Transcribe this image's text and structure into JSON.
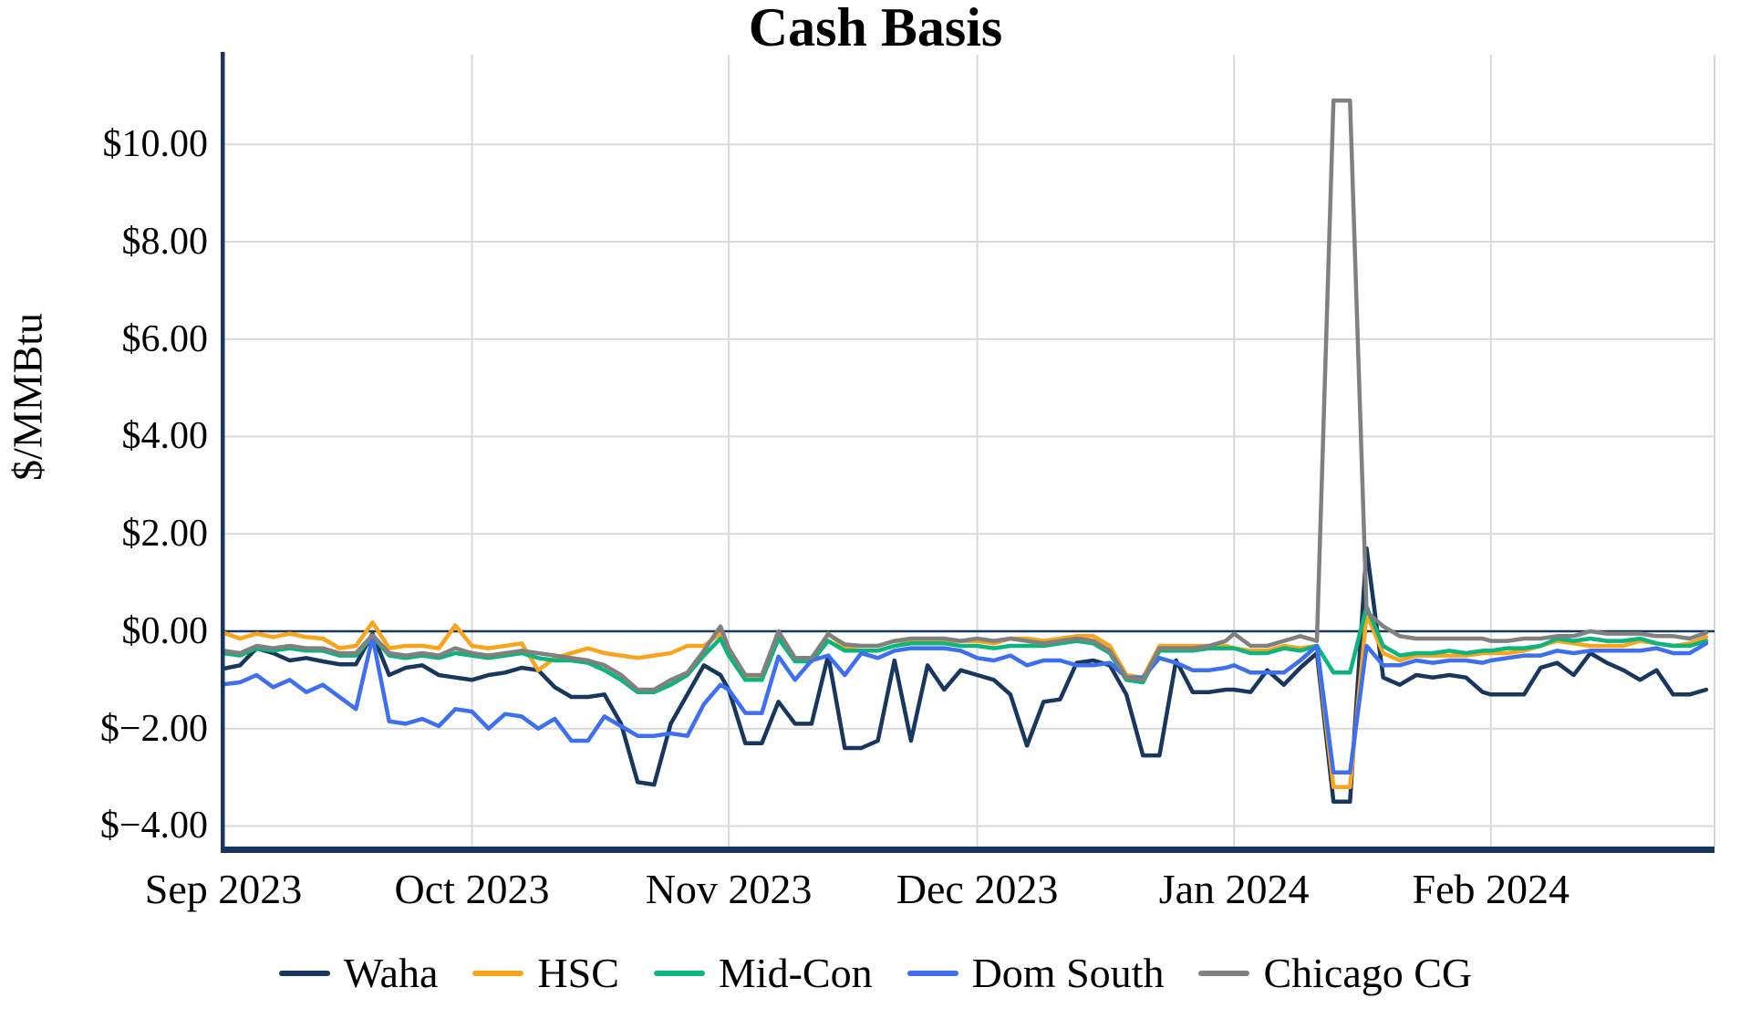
{
  "chart_data": {
    "type": "line",
    "title": "Cash Basis",
    "ylabel": "$/MMBtu",
    "legend_position": "bottom",
    "grid": "on",
    "colors": {
      "axis": "#17375e",
      "zero_line": "#17375e",
      "gridline": "#d9d9d9",
      "background": "#ffffff"
    },
    "ylim": [
      -4.46,
      11.84
    ],
    "x_range": [
      "2023-09-01",
      "2024-02-28"
    ],
    "y_ticks": [
      {
        "value": 10,
        "label": "$10.00"
      },
      {
        "value": 8,
        "label": "$8.00"
      },
      {
        "value": 6,
        "label": "$6.00"
      },
      {
        "value": 4,
        "label": "$4.00"
      },
      {
        "value": 2,
        "label": "$2.00"
      },
      {
        "value": 0,
        "label": "$0.00"
      },
      {
        "value": -2,
        "label": "$−2.00"
      },
      {
        "value": -4,
        "label": "$−4.00"
      }
    ],
    "x_ticks": [
      {
        "date": "2023-09-01",
        "label": "Sep 2023",
        "gridline": false
      },
      {
        "date": "2023-10-01",
        "label": "Oct 2023",
        "gridline": true
      },
      {
        "date": "2023-11-01",
        "label": "Nov 2023",
        "gridline": true
      },
      {
        "date": "2023-12-01",
        "label": "Dec 2023",
        "gridline": true
      },
      {
        "date": "2024-01-01",
        "label": "Jan 2024",
        "gridline": true
      },
      {
        "date": "2024-02-01",
        "label": "Feb 2024",
        "gridline": true
      }
    ],
    "dates": [
      "2023-09-01",
      "2023-09-03",
      "2023-09-05",
      "2023-09-07",
      "2023-09-09",
      "2023-09-11",
      "2023-09-13",
      "2023-09-15",
      "2023-09-17",
      "2023-09-19",
      "2023-09-21",
      "2023-09-23",
      "2023-09-25",
      "2023-09-27",
      "2023-09-29",
      "2023-10-01",
      "2023-10-03",
      "2023-10-05",
      "2023-10-07",
      "2023-10-09",
      "2023-10-11",
      "2023-10-13",
      "2023-10-15",
      "2023-10-17",
      "2023-10-19",
      "2023-10-21",
      "2023-10-23",
      "2023-10-25",
      "2023-10-27",
      "2023-10-29",
      "2023-10-31",
      "2023-11-01",
      "2023-11-03",
      "2023-11-05",
      "2023-11-07",
      "2023-11-09",
      "2023-11-11",
      "2023-11-13",
      "2023-11-15",
      "2023-11-17",
      "2023-11-19",
      "2023-11-21",
      "2023-11-23",
      "2023-11-25",
      "2023-11-27",
      "2023-11-29",
      "2023-12-01",
      "2023-12-03",
      "2023-12-05",
      "2023-12-07",
      "2023-12-09",
      "2023-12-11",
      "2023-12-13",
      "2023-12-15",
      "2023-12-17",
      "2023-12-19",
      "2023-12-21",
      "2023-12-23",
      "2023-12-25",
      "2023-12-27",
      "2023-12-29",
      "2023-12-31",
      "2024-01-01",
      "2024-01-03",
      "2024-01-05",
      "2024-01-07",
      "2024-01-09",
      "2024-01-11",
      "2024-01-13",
      "2024-01-15",
      "2024-01-17",
      "2024-01-19",
      "2024-01-21",
      "2024-01-23",
      "2024-01-25",
      "2024-01-27",
      "2024-01-29",
      "2024-01-31",
      "2024-02-01",
      "2024-02-03",
      "2024-02-05",
      "2024-02-07",
      "2024-02-09",
      "2024-02-11",
      "2024-02-13",
      "2024-02-15",
      "2024-02-17",
      "2024-02-19",
      "2024-02-21",
      "2024-02-23",
      "2024-02-25",
      "2024-02-27"
    ],
    "series": [
      {
        "name": "Waha",
        "color": "#17375e",
        "values": [
          -0.77,
          -0.7,
          -0.35,
          -0.45,
          -0.6,
          -0.55,
          -0.62,
          -0.68,
          -0.68,
          -0.05,
          -0.9,
          -0.75,
          -0.7,
          -0.9,
          -0.95,
          -1.0,
          -0.9,
          -0.85,
          -0.75,
          -0.8,
          -1.15,
          -1.35,
          -1.35,
          -1.3,
          -1.9,
          -3.1,
          -3.15,
          -1.9,
          -1.3,
          -0.7,
          -0.9,
          -1.2,
          -2.3,
          -2.3,
          -1.45,
          -1.9,
          -1.9,
          -0.5,
          -2.4,
          -2.4,
          -2.25,
          -0.6,
          -2.25,
          -0.7,
          -1.2,
          -0.8,
          -0.9,
          -1.0,
          -1.3,
          -2.35,
          -1.45,
          -1.4,
          -0.65,
          -0.6,
          -0.7,
          -1.3,
          -2.55,
          -2.55,
          -0.6,
          -1.25,
          -1.25,
          -1.2,
          -1.2,
          -1.25,
          -0.8,
          -1.1,
          -0.75,
          -0.45,
          -3.5,
          -3.5,
          1.7,
          -0.95,
          -1.1,
          -0.9,
          -0.95,
          -0.9,
          -0.95,
          -1.25,
          -1.3,
          -1.3,
          -1.3,
          -0.75,
          -0.65,
          -0.9,
          -0.45,
          -0.65,
          -0.8,
          -1.0,
          -0.8,
          -1.3,
          -1.3,
          -1.2
        ]
      },
      {
        "name": "HSC",
        "color": "#faa41c",
        "values": [
          -0.03,
          -0.15,
          -0.05,
          -0.12,
          -0.05,
          -0.12,
          -0.15,
          -0.35,
          -0.3,
          0.18,
          -0.35,
          -0.3,
          -0.3,
          -0.35,
          0.12,
          -0.3,
          -0.35,
          -0.3,
          -0.25,
          -0.8,
          -0.55,
          -0.45,
          -0.35,
          -0.45,
          -0.5,
          -0.55,
          -0.5,
          -0.45,
          -0.3,
          -0.3,
          -0.05,
          -0.4,
          -0.95,
          -0.95,
          -0.1,
          -0.6,
          -0.6,
          -0.05,
          -0.33,
          -0.3,
          -0.3,
          -0.2,
          -0.2,
          -0.2,
          -0.2,
          -0.2,
          -0.2,
          -0.25,
          -0.15,
          -0.15,
          -0.2,
          -0.15,
          -0.1,
          -0.1,
          -0.3,
          -0.9,
          -0.95,
          -0.3,
          -0.3,
          -0.3,
          -0.3,
          -0.3,
          -0.35,
          -0.4,
          -0.4,
          -0.3,
          -0.35,
          -0.3,
          -3.2,
          -3.2,
          0.35,
          -0.45,
          -0.6,
          -0.5,
          -0.5,
          -0.5,
          -0.5,
          -0.45,
          -0.45,
          -0.45,
          -0.4,
          -0.3,
          -0.2,
          -0.25,
          -0.3,
          -0.3,
          -0.3,
          -0.2,
          -0.25,
          -0.3,
          -0.25,
          -0.12
        ]
      },
      {
        "name": "Mid-Con",
        "color": "#0cb57e",
        "values": [
          -0.45,
          -0.5,
          -0.35,
          -0.4,
          -0.35,
          -0.4,
          -0.4,
          -0.5,
          -0.5,
          -0.1,
          -0.5,
          -0.55,
          -0.5,
          -0.55,
          -0.45,
          -0.5,
          -0.55,
          -0.5,
          -0.45,
          -0.55,
          -0.6,
          -0.6,
          -0.65,
          -0.8,
          -1.0,
          -1.25,
          -1.25,
          -1.1,
          -0.9,
          -0.5,
          -0.15,
          -0.5,
          -1.0,
          -1.0,
          -0.15,
          -0.62,
          -0.62,
          -0.2,
          -0.4,
          -0.4,
          -0.4,
          -0.3,
          -0.25,
          -0.25,
          -0.25,
          -0.3,
          -0.3,
          -0.35,
          -0.3,
          -0.3,
          -0.3,
          -0.25,
          -0.2,
          -0.25,
          -0.45,
          -1.0,
          -1.05,
          -0.4,
          -0.4,
          -0.4,
          -0.35,
          -0.35,
          -0.35,
          -0.45,
          -0.45,
          -0.35,
          -0.4,
          -0.3,
          -0.85,
          -0.85,
          0.5,
          -0.3,
          -0.5,
          -0.45,
          -0.45,
          -0.4,
          -0.45,
          -0.4,
          -0.4,
          -0.35,
          -0.35,
          -0.3,
          -0.15,
          -0.2,
          -0.15,
          -0.2,
          -0.2,
          -0.15,
          -0.25,
          -0.3,
          -0.3,
          -0.2
        ]
      },
      {
        "name": "Dom South",
        "color": "#3e6ff0",
        "values": [
          -1.09,
          -1.05,
          -0.9,
          -1.15,
          -1.0,
          -1.25,
          -1.1,
          -1.35,
          -1.6,
          -0.12,
          -1.85,
          -1.9,
          -1.8,
          -1.95,
          -1.6,
          -1.65,
          -2.0,
          -1.7,
          -1.75,
          -2.0,
          -1.8,
          -2.25,
          -2.25,
          -1.75,
          -1.95,
          -2.15,
          -2.15,
          -2.1,
          -2.15,
          -1.5,
          -1.1,
          -1.2,
          -1.68,
          -1.68,
          -0.52,
          -1.0,
          -0.6,
          -0.5,
          -0.9,
          -0.45,
          -0.55,
          -0.4,
          -0.35,
          -0.35,
          -0.35,
          -0.4,
          -0.55,
          -0.6,
          -0.5,
          -0.7,
          -0.6,
          -0.6,
          -0.7,
          -0.7,
          -0.65,
          -0.95,
          -0.95,
          -0.55,
          -0.65,
          -0.8,
          -0.8,
          -0.75,
          -0.7,
          -0.85,
          -0.85,
          -0.85,
          -0.6,
          -0.3,
          -2.9,
          -2.9,
          -0.3,
          -0.7,
          -0.7,
          -0.6,
          -0.65,
          -0.6,
          -0.6,
          -0.65,
          -0.6,
          -0.55,
          -0.5,
          -0.5,
          -0.4,
          -0.45,
          -0.4,
          -0.4,
          -0.4,
          -0.4,
          -0.35,
          -0.45,
          -0.45,
          -0.25
        ]
      },
      {
        "name": "Chicago CG",
        "color": "#808080",
        "values": [
          -0.4,
          -0.45,
          -0.3,
          -0.35,
          -0.3,
          -0.35,
          -0.35,
          -0.45,
          -0.45,
          -0.08,
          -0.45,
          -0.5,
          -0.45,
          -0.5,
          -0.35,
          -0.45,
          -0.5,
          -0.45,
          -0.4,
          -0.45,
          -0.5,
          -0.55,
          -0.6,
          -0.7,
          -0.9,
          -1.2,
          -1.2,
          -1.0,
          -0.85,
          -0.4,
          0.1,
          -0.35,
          -0.9,
          -0.9,
          0.0,
          -0.55,
          -0.55,
          -0.06,
          -0.27,
          -0.3,
          -0.3,
          -0.2,
          -0.15,
          -0.15,
          -0.15,
          -0.2,
          -0.15,
          -0.2,
          -0.15,
          -0.2,
          -0.25,
          -0.2,
          -0.15,
          -0.2,
          -0.4,
          -0.95,
          -1.0,
          -0.35,
          -0.35,
          -0.35,
          -0.3,
          -0.2,
          -0.05,
          -0.3,
          -0.3,
          -0.2,
          -0.1,
          -0.2,
          10.9,
          10.9,
          0.4,
          0.1,
          -0.1,
          -0.15,
          -0.15,
          -0.15,
          -0.15,
          -0.15,
          -0.2,
          -0.2,
          -0.15,
          -0.15,
          -0.1,
          -0.1,
          0.0,
          -0.05,
          -0.05,
          -0.05,
          -0.1,
          -0.1,
          -0.15,
          -0.03
        ]
      }
    ]
  }
}
